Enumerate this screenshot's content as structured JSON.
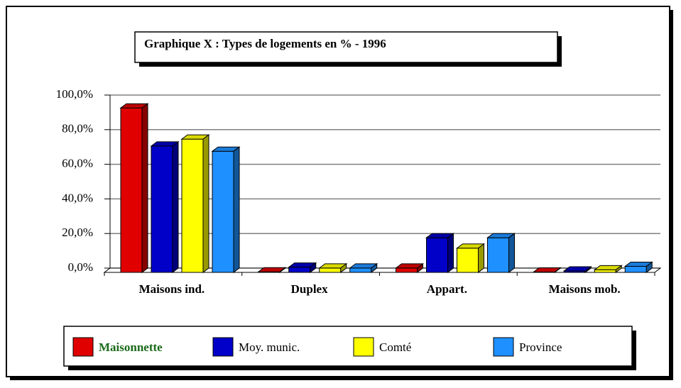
{
  "chart_data": {
    "type": "bar3d",
    "title": "Graphique X : Types de logements en % - 1996",
    "categories": [
      "Maisons ind.",
      "Duplex",
      "Appart.",
      "Maisons mob."
    ],
    "series": [
      {
        "name": "Maisonnette",
        "color": "#e00000",
        "values": [
          95,
          0.3,
          2.5,
          0.2
        ]
      },
      {
        "name": "Moy. munic.",
        "color": "#0000c8",
        "values": [
          73,
          3,
          20,
          0.8
        ]
      },
      {
        "name": "Comté",
        "color": "#ffff00",
        "values": [
          77,
          2.5,
          14,
          1.5
        ]
      },
      {
        "name": "Province",
        "color": "#1e90ff",
        "values": [
          70,
          2.5,
          20,
          3.5
        ]
      }
    ],
    "ylim": [
      0,
      100
    ],
    "yticks": [
      {
        "value": 0,
        "label": "0,0%"
      },
      {
        "value": 20,
        "label": "20,0%"
      },
      {
        "value": 40,
        "label": "40,0%"
      },
      {
        "value": 60,
        "label": "60,0%"
      },
      {
        "value": 80,
        "label": "80,0%"
      },
      {
        "value": 100,
        "label": "100,0%"
      }
    ],
    "grid": true
  }
}
